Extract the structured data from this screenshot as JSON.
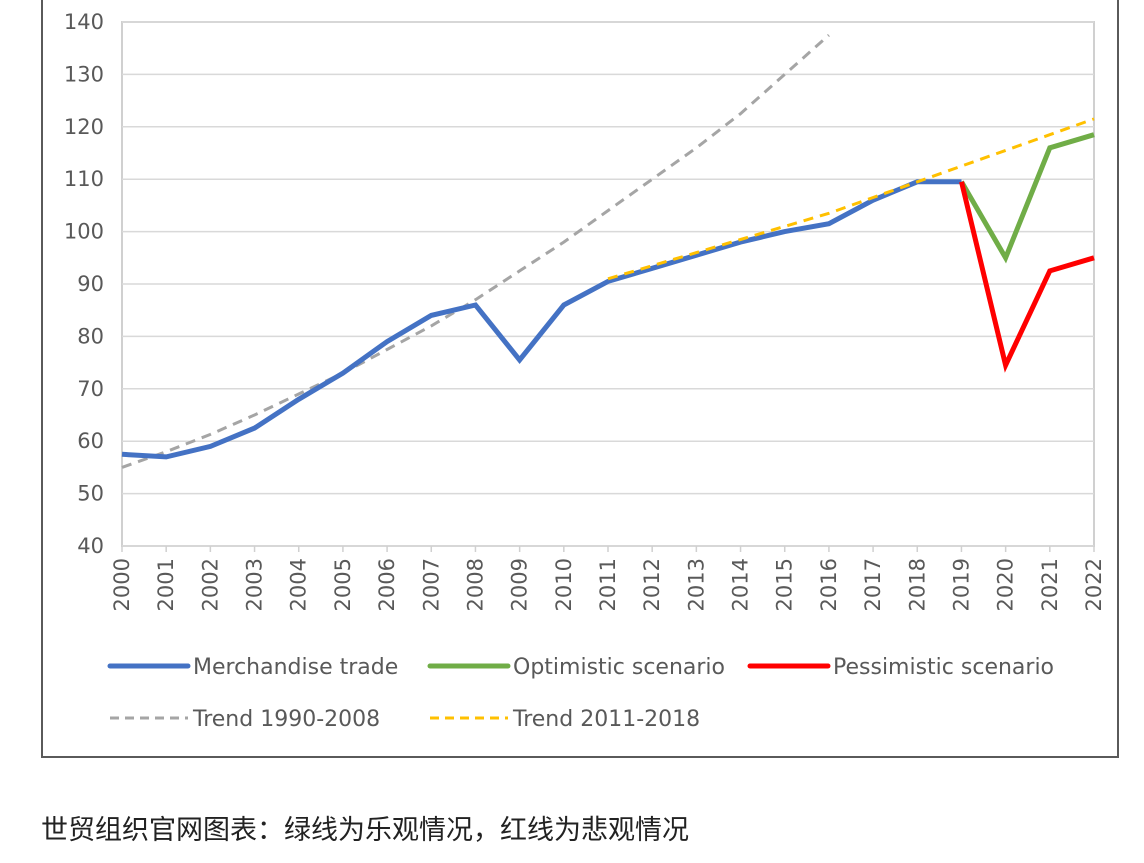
{
  "chart_data": {
    "type": "line",
    "title": "",
    "xlabel": "",
    "ylabel": "",
    "ylim": [
      40,
      140
    ],
    "yticks": [
      40,
      50,
      60,
      70,
      80,
      90,
      100,
      110,
      120,
      130,
      140
    ],
    "grid": "horizontal",
    "legend_position": "bottom",
    "x": [
      2000,
      2001,
      2002,
      2003,
      2004,
      2005,
      2006,
      2007,
      2008,
      2009,
      2010,
      2011,
      2012,
      2013,
      2014,
      2015,
      2016,
      2017,
      2018,
      2019,
      2020,
      2021,
      2022
    ],
    "series": [
      {
        "name": "Merchandise trade",
        "color": "#4472C4",
        "style": "solid",
        "x": [
          2000,
          2001,
          2002,
          2003,
          2004,
          2005,
          2006,
          2007,
          2008,
          2009,
          2010,
          2011,
          2012,
          2013,
          2014,
          2015,
          2016,
          2017,
          2018,
          2019
        ],
        "values": [
          57.5,
          57,
          59,
          62.5,
          68,
          73,
          79,
          84,
          86,
          75.5,
          86,
          90.5,
          93,
          95.5,
          98,
          100,
          101.5,
          106,
          109.5,
          109.5
        ]
      },
      {
        "name": "Optimistic scenario",
        "color": "#70AD47",
        "style": "solid",
        "x": [
          2019,
          2020,
          2021,
          2022
        ],
        "values": [
          109.5,
          95,
          116,
          118.5
        ]
      },
      {
        "name": "Pessimistic scenario",
        "color": "#FF0000",
        "style": "solid",
        "x": [
          2019,
          2020,
          2021,
          2022
        ],
        "values": [
          109.5,
          74.5,
          92.5,
          95
        ]
      },
      {
        "name": "Trend 1990-2008",
        "color": "#A5A5A5",
        "style": "dashed",
        "x": [
          2000,
          2001,
          2002,
          2003,
          2004,
          2005,
          2006,
          2007,
          2008,
          2009,
          2010,
          2011,
          2012,
          2013,
          2014,
          2015,
          2016
        ],
        "values": [
          55,
          58,
          61.3,
          65,
          69,
          73,
          77.5,
          82,
          87,
          92.5,
          98,
          104,
          110,
          116,
          122.5,
          130,
          137.5
        ]
      },
      {
        "name": "Trend 2011-2018",
        "color": "#FFC000",
        "style": "dashed",
        "x": [
          2011,
          2012,
          2013,
          2014,
          2015,
          2016,
          2017,
          2018,
          2019,
          2020,
          2021,
          2022
        ],
        "values": [
          91,
          93.5,
          96,
          98.5,
          101,
          103.5,
          106.5,
          109.5,
          112.5,
          115.5,
          118.5,
          121.5
        ]
      }
    ]
  },
  "legend": {
    "row1": [
      {
        "label": "Merchandise trade",
        "color": "#4472C4",
        "style": "solid"
      },
      {
        "label": "Optimistic scenario",
        "color": "#70AD47",
        "style": "solid"
      },
      {
        "label": "Pessimistic scenario",
        "color": "#FF0000",
        "style": "solid"
      }
    ],
    "row2": [
      {
        "label": "Trend 1990-2008",
        "color": "#A5A5A5",
        "style": "dashed"
      },
      {
        "label": "Trend 2011-2018",
        "color": "#FFC000",
        "style": "dashed"
      }
    ]
  },
  "caption": "世贸组织官网图表：绿线为乐观情况，红线为悲观情况"
}
